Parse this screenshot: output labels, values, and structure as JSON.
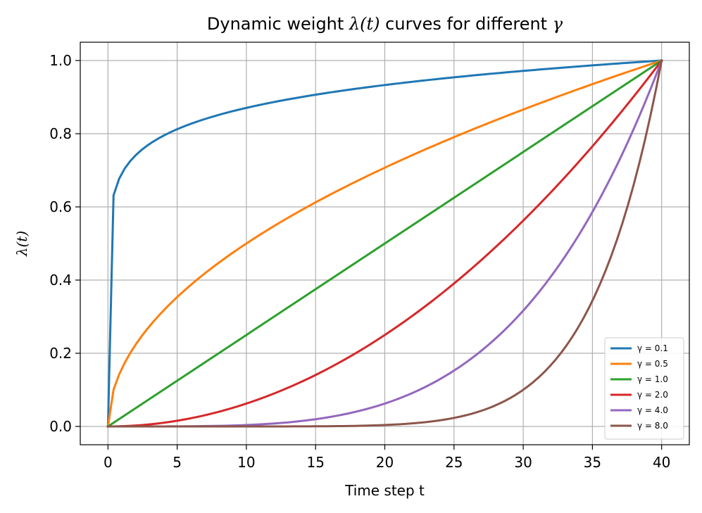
{
  "chart_data": {
    "type": "line",
    "title": "Dynamic weight λ(t) curves for different γ",
    "title_parts": {
      "prefix": "Dynamic weight ",
      "lambda_t": "λ(t)",
      "middle": " curves for different ",
      "gamma": "γ"
    },
    "xlabel": "Time step t",
    "ylabel": "λ(t)",
    "xlim": [
      -2,
      42
    ],
    "ylim": [
      -0.05,
      1.05
    ],
    "x_ticks": [
      0,
      5,
      10,
      15,
      20,
      25,
      30,
      35,
      40
    ],
    "x_tick_labels": [
      "0",
      "5",
      "10",
      "15",
      "20",
      "25",
      "30",
      "35",
      "40"
    ],
    "y_ticks": [
      0.0,
      0.2,
      0.4,
      0.6,
      0.8,
      1.0
    ],
    "y_tick_labels": [
      "0.0",
      "0.2",
      "0.4",
      "0.6",
      "0.8",
      "1.0"
    ],
    "grid": true,
    "legend_position": "bottom-right",
    "t_max": 40,
    "samples": 100,
    "series": [
      {
        "name": "γ = 0.1",
        "gamma": 0.1,
        "color": "#1f77b4"
      },
      {
        "name": "γ = 0.5",
        "gamma": 0.5,
        "color": "#ff7f0e"
      },
      {
        "name": "γ = 1.0",
        "gamma": 1.0,
        "color": "#2ca02c"
      },
      {
        "name": "γ = 2.0",
        "gamma": 2.0,
        "color": "#d62728"
      },
      {
        "name": "γ = 4.0",
        "gamma": 4.0,
        "color": "#9467bd"
      },
      {
        "name": "γ = 8.0",
        "gamma": 8.0,
        "color": "#8c564b"
      }
    ]
  }
}
